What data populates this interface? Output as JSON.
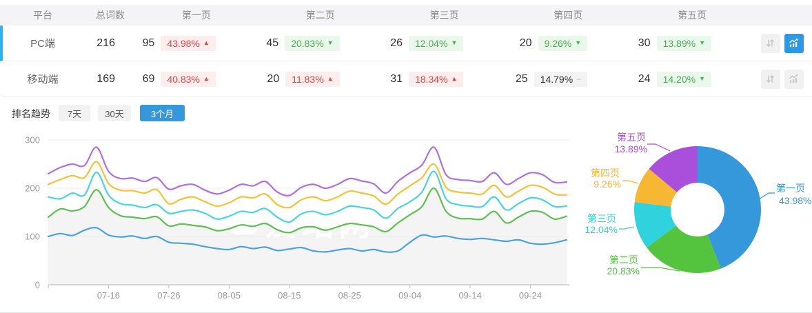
{
  "table": {
    "columns": [
      "平台",
      "总词数",
      "第一页",
      "第二页",
      "第三页",
      "第四页",
      "第五页"
    ],
    "rows": [
      {
        "platform": "PC端",
        "total": "216",
        "selected": true,
        "pages": [
          {
            "count": "95",
            "percent": "43.98%",
            "trend": "up"
          },
          {
            "count": "45",
            "percent": "20.83%",
            "trend": "down"
          },
          {
            "count": "26",
            "percent": "12.04%",
            "trend": "down"
          },
          {
            "count": "20",
            "percent": "9.26%",
            "trend": "down"
          },
          {
            "count": "30",
            "percent": "13.89%",
            "trend": "down"
          }
        ]
      },
      {
        "platform": "移动端",
        "total": "169",
        "selected": false,
        "pages": [
          {
            "count": "69",
            "percent": "40.83%",
            "trend": "up"
          },
          {
            "count": "20",
            "percent": "11.83%",
            "trend": "up"
          },
          {
            "count": "31",
            "percent": "18.34%",
            "trend": "up"
          },
          {
            "count": "25",
            "percent": "14.79%",
            "trend": "flat"
          },
          {
            "count": "24",
            "percent": "14.20%",
            "trend": "down"
          }
        ]
      }
    ]
  },
  "glyphs": {
    "up": "▲",
    "down": "▼",
    "flat": "−"
  },
  "trend": {
    "title": "排名趋势",
    "tabs": [
      {
        "label": "7天",
        "active": false
      },
      {
        "label": "30天",
        "active": false
      },
      {
        "label": "3个月",
        "active": true
      }
    ]
  },
  "watermark": "爱站网",
  "colors": {
    "accent": "#3598dc",
    "selected_row_border": "#2bb3f3",
    "up_red": "#f0413c",
    "down_green": "#43b14b"
  },
  "chart_data": [
    {
      "type": "line",
      "title": "排名趋势 (3个月)",
      "x_tick_labels": [
        "07-16",
        "07-26",
        "08-05",
        "08-15",
        "08-25",
        "09-04",
        "09-14",
        "09-24"
      ],
      "yticks": [
        0,
        100,
        200,
        300
      ],
      "ylim": [
        0,
        300
      ],
      "grid": true,
      "legend_position": "none",
      "series": [
        {
          "name": "第五页",
          "color": "#b06fe0",
          "values": [
            230,
            243,
            250,
            247,
            285,
            235,
            220,
            221,
            214,
            222,
            198,
            205,
            208,
            196,
            188,
            196,
            208,
            205,
            214,
            192,
            185,
            202,
            208,
            200,
            208,
            220,
            215,
            209,
            190,
            214,
            232,
            248,
            285,
            228,
            218,
            216,
            214,
            232,
            208,
            220,
            232,
            228,
            212,
            213
          ]
        },
        {
          "name": "第四页",
          "color": "#f6c138",
          "values": [
            208,
            218,
            226,
            222,
            255,
            210,
            196,
            195,
            190,
            197,
            168,
            177,
            182,
            172,
            163,
            170,
            182,
            180,
            188,
            166,
            160,
            176,
            182,
            174,
            182,
            194,
            190,
            184,
            167,
            188,
            205,
            222,
            250,
            202,
            192,
            190,
            188,
            206,
            182,
            194,
            206,
            202,
            188,
            186
          ]
        },
        {
          "name": "第三页",
          "color": "#49d4de",
          "values": [
            182,
            178,
            190,
            186,
            233,
            186,
            168,
            165,
            160,
            166,
            148,
            152,
            155,
            148,
            136,
            142,
            152,
            150,
            158,
            140,
            130,
            147,
            152,
            145,
            152,
            163,
            160,
            155,
            138,
            158,
            172,
            192,
            235,
            178,
            166,
            163,
            162,
            182,
            155,
            168,
            180,
            176,
            162,
            163
          ]
        },
        {
          "name": "第二页",
          "color": "#5ec051",
          "fill": "#f4f4f5",
          "values": [
            140,
            157,
            153,
            162,
            197,
            160,
            143,
            140,
            137,
            141,
            122,
            126,
            123,
            120,
            112,
            116,
            124,
            121,
            127,
            114,
            108,
            118,
            120,
            113,
            120,
            127,
            124,
            120,
            110,
            128,
            145,
            162,
            200,
            152,
            138,
            137,
            136,
            152,
            128,
            140,
            152,
            150,
            136,
            142
          ]
        },
        {
          "name": "第一页",
          "color": "#4aa2e2",
          "values": [
            100,
            106,
            102,
            113,
            118,
            103,
            99,
            101,
            96,
            100,
            88,
            86,
            84,
            79,
            75,
            73,
            79,
            75,
            78,
            71,
            74,
            77,
            70,
            68,
            72,
            75,
            70,
            73,
            68,
            70,
            88,
            103,
            99,
            101,
            96,
            94,
            96,
            93,
            90,
            93,
            86,
            84,
            87,
            93
          ]
        }
      ]
    },
    {
      "type": "donut",
      "slices": [
        {
          "name": "第一页",
          "value": 43.98,
          "label": "43.98%",
          "color": "#3598db"
        },
        {
          "name": "第二页",
          "value": 20.83,
          "label": "20.83%",
          "color": "#54c33e"
        },
        {
          "name": "第三页",
          "value": 12.04,
          "label": "12.04%",
          "color": "#30d2dd"
        },
        {
          "name": "第四页",
          "value": 9.26,
          "label": "9.26%",
          "color": "#f6b733"
        },
        {
          "name": "第五页",
          "value": 13.89,
          "label": "13.89%",
          "color": "#aa4fdb"
        }
      ]
    }
  ]
}
